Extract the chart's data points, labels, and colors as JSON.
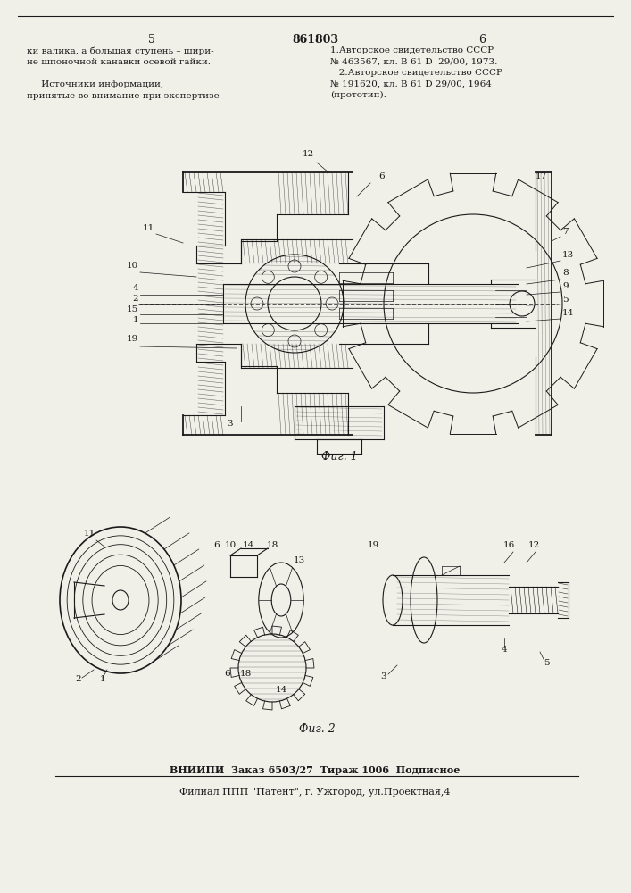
{
  "page_width": 7.07,
  "page_height": 10.0,
  "bg_color": "#f0efe8",
  "top_left_text": "5",
  "top_center_text": "861803",
  "top_right_text": "6",
  "fig1_caption": "Фиг. 1",
  "fig2_caption": "Фиг. 2",
  "bottom_line1": "ВНИИПИ  Заказ 6503/27  Тираж 1006  Подписное",
  "bottom_line2": "Филиал ППП \"Патент\", г. Ужгород, ул.Проектная,4",
  "text_color": "#1a1a1a",
  "line_color": "#1a1a1a"
}
